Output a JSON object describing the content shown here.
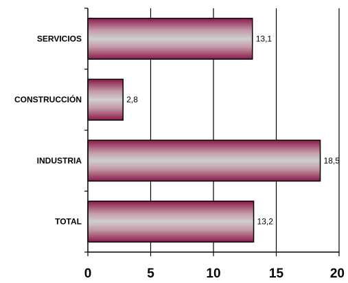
{
  "chart_data": {
    "type": "bar",
    "orientation": "horizontal",
    "title": "",
    "xlabel": "",
    "ylabel": "",
    "categories": [
      "SERVICIOS",
      "CONSTRUCCIÓN",
      "INDUSTRIA",
      "TOTAL"
    ],
    "values": [
      13.1,
      2.8,
      18.5,
      13.2
    ],
    "value_labels": [
      "13,1",
      "2,8",
      "18,5",
      "13,2"
    ],
    "xlim": [
      0,
      20
    ],
    "x_ticks": [
      0,
      5,
      10,
      15,
      20
    ],
    "x_tick_labels": [
      "0",
      "5",
      "10",
      "15",
      "20"
    ],
    "grid": "vertical",
    "legend": "none",
    "bar_color_edge": "#8b1a4a",
    "bar_color_center": "#c8c8c8"
  }
}
